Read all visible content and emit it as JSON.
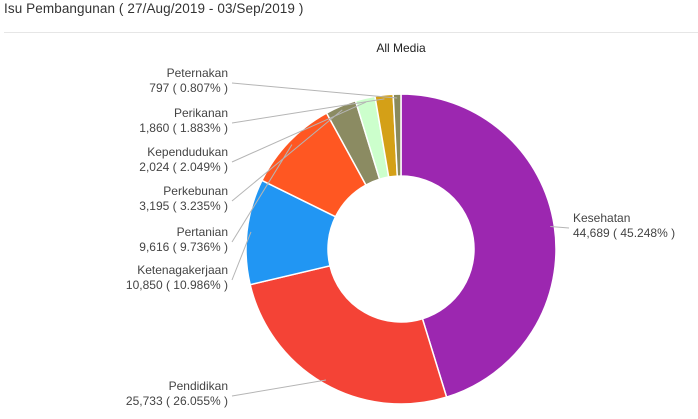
{
  "header": {
    "title": "Isu Pembangunan ( 27/Aug/2019 - 03/Sep/2019 )"
  },
  "chart_data": {
    "type": "pie",
    "style": "donut",
    "subtitle": "All Media",
    "slices": [
      {
        "label": "Kesehatan",
        "value": 44689,
        "percent": "45.248%",
        "value_text": "44,689",
        "color": "#9c27b0"
      },
      {
        "label": "Pendidikan",
        "value": 25733,
        "percent": "26.055%",
        "value_text": "25,733",
        "color": "#f44336"
      },
      {
        "label": "Ketenagakerjaan",
        "value": 10850,
        "percent": "10.986%",
        "value_text": "10,850",
        "color": "#2196f3"
      },
      {
        "label": "Pertanian",
        "value": 9616,
        "percent": "9.736%",
        "value_text": "9,616",
        "color": "#ff5722"
      },
      {
        "label": "Perkebunan",
        "value": 3195,
        "percent": "3.235%",
        "value_text": "3,195",
        "color": "#8b8b62"
      },
      {
        "label": "Kependudukan",
        "value": 2024,
        "percent": "2.049%",
        "value_text": "2,024",
        "color": "#ccffcc"
      },
      {
        "label": "Perikanan",
        "value": 1860,
        "percent": "1.883%",
        "value_text": "1,860",
        "color": "#d4a017"
      },
      {
        "label": "Peternakan",
        "value": 797,
        "percent": "0.807%",
        "value_text": "797",
        "color": "#8a8a5c"
      }
    ]
  }
}
